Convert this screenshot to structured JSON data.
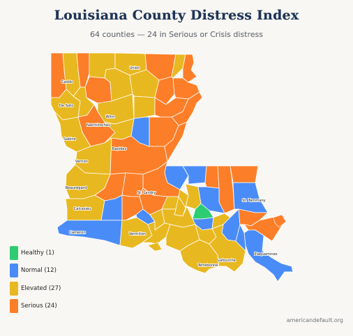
{
  "title": "Louisiana County Distress Index",
  "subtitle": "64 counties — 24 in Serious or Crisis distress",
  "colors": {
    "healthy": "#2ecc71",
    "normal": "#4a8cf7",
    "elevated": "#e8b820",
    "serious": "#fd7e28",
    "border": "#ffffff"
  },
  "legend": [
    {
      "key": "healthy",
      "label": "Healthy (1)"
    },
    {
      "key": "normal",
      "label": "Normal (12)"
    },
    {
      "key": "elevated",
      "label": "Elevated (27)"
    },
    {
      "key": "serious",
      "label": "Serious (24)"
    }
  ],
  "labels": {
    "union": "Union",
    "caddo": "Caddo",
    "de_soto": "De Soto",
    "winn": "Winn",
    "natchitoches": "Natchitoches",
    "sabine": "Sabine",
    "rapides": "Rapides",
    "vernon": "Vernon",
    "beauregard": "Beauregard",
    "st_landry": "St. Landry",
    "st_tammany": "St. Tammany",
    "calcasieu": "Calcasieu",
    "cameron": "Cameron",
    "vermilion": "Vermilion",
    "plaquemines": "Plaquemines",
    "lafourche": "Lafourche",
    "terrebonne": "Terrebonne"
  },
  "source": "americandefault.org"
}
